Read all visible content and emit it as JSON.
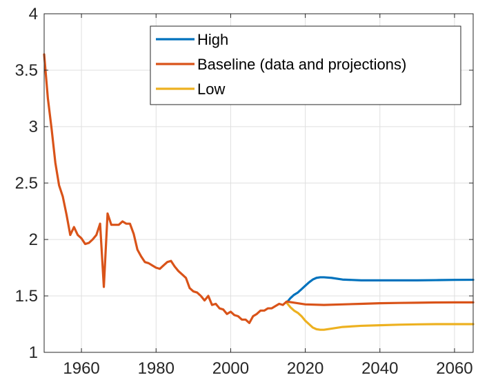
{
  "chart_data": {
    "type": "line",
    "title": "",
    "xlabel": "",
    "ylabel": "",
    "xlim": [
      1950,
      2065
    ],
    "ylim": [
      1,
      4
    ],
    "x_ticks": [
      1960,
      1980,
      2000,
      2020,
      2040,
      2060
    ],
    "y_ticks": [
      1,
      1.5,
      2,
      2.5,
      3,
      3.5,
      4
    ],
    "x_tick_labels": [
      "1960",
      "1980",
      "2000",
      "2020",
      "2040",
      "2060"
    ],
    "y_tick_labels": [
      "1",
      "1.5",
      "2",
      "2.5",
      "3",
      "3.5",
      "4"
    ],
    "grid": true,
    "legend_position": "top-right",
    "series": [
      {
        "name": "High",
        "color": "#0072BD",
        "points": [
          [
            2015,
            1.44
          ],
          [
            2016,
            1.48
          ],
          [
            2017,
            1.51
          ],
          [
            2018,
            1.53
          ],
          [
            2019,
            1.56
          ],
          [
            2020,
            1.59
          ],
          [
            2021,
            1.62
          ],
          [
            2022,
            1.645
          ],
          [
            2023,
            1.66
          ],
          [
            2024,
            1.665
          ],
          [
            2025,
            1.665
          ],
          [
            2027,
            1.66
          ],
          [
            2030,
            1.645
          ],
          [
            2035,
            1.638
          ],
          [
            2040,
            1.638
          ],
          [
            2045,
            1.638
          ],
          [
            2050,
            1.638
          ],
          [
            2055,
            1.64
          ],
          [
            2060,
            1.642
          ],
          [
            2065,
            1.643
          ]
        ]
      },
      {
        "name": "Baseline (data and projections)",
        "color": "#D95319",
        "points": [
          [
            1950,
            3.64
          ],
          [
            1951,
            3.25
          ],
          [
            1952,
            2.98
          ],
          [
            1953,
            2.68
          ],
          [
            1954,
            2.48
          ],
          [
            1955,
            2.38
          ],
          [
            1956,
            2.22
          ],
          [
            1957,
            2.04
          ],
          [
            1958,
            2.11
          ],
          [
            1959,
            2.04
          ],
          [
            1960,
            2.01
          ],
          [
            1961,
            1.96
          ],
          [
            1962,
            1.97
          ],
          [
            1963,
            2.0
          ],
          [
            1964,
            2.04
          ],
          [
            1965,
            2.14
          ],
          [
            1966,
            1.58
          ],
          [
            1967,
            2.23
          ],
          [
            1968,
            2.13
          ],
          [
            1969,
            2.13
          ],
          [
            1970,
            2.13
          ],
          [
            1971,
            2.16
          ],
          [
            1972,
            2.14
          ],
          [
            1973,
            2.14
          ],
          [
            1974,
            2.05
          ],
          [
            1975,
            1.91
          ],
          [
            1976,
            1.85
          ],
          [
            1977,
            1.8
          ],
          [
            1978,
            1.79
          ],
          [
            1979,
            1.77
          ],
          [
            1980,
            1.75
          ],
          [
            1981,
            1.74
          ],
          [
            1982,
            1.77
          ],
          [
            1983,
            1.8
          ],
          [
            1984,
            1.81
          ],
          [
            1985,
            1.76
          ],
          [
            1986,
            1.72
          ],
          [
            1987,
            1.69
          ],
          [
            1988,
            1.66
          ],
          [
            1989,
            1.57
          ],
          [
            1990,
            1.54
          ],
          [
            1991,
            1.53
          ],
          [
            1992,
            1.5
          ],
          [
            1993,
            1.46
          ],
          [
            1994,
            1.5
          ],
          [
            1995,
            1.42
          ],
          [
            1996,
            1.43
          ],
          [
            1997,
            1.39
          ],
          [
            1998,
            1.38
          ],
          [
            1999,
            1.34
          ],
          [
            2000,
            1.36
          ],
          [
            2001,
            1.33
          ],
          [
            2002,
            1.32
          ],
          [
            2003,
            1.29
          ],
          [
            2004,
            1.29
          ],
          [
            2005,
            1.26
          ],
          [
            2006,
            1.32
          ],
          [
            2007,
            1.34
          ],
          [
            2008,
            1.37
          ],
          [
            2009,
            1.37
          ],
          [
            2010,
            1.39
          ],
          [
            2011,
            1.39
          ],
          [
            2012,
            1.41
          ],
          [
            2013,
            1.43
          ],
          [
            2014,
            1.42
          ],
          [
            2015,
            1.45
          ],
          [
            2017,
            1.44
          ],
          [
            2020,
            1.425
          ],
          [
            2025,
            1.42
          ],
          [
            2030,
            1.425
          ],
          [
            2035,
            1.43
          ],
          [
            2040,
            1.435
          ],
          [
            2045,
            1.438
          ],
          [
            2050,
            1.44
          ],
          [
            2055,
            1.442
          ],
          [
            2060,
            1.443
          ],
          [
            2065,
            1.443
          ]
        ]
      },
      {
        "name": "Low",
        "color": "#EDB120",
        "points": [
          [
            2015,
            1.44
          ],
          [
            2016,
            1.4
          ],
          [
            2017,
            1.37
          ],
          [
            2018,
            1.35
          ],
          [
            2019,
            1.32
          ],
          [
            2020,
            1.28
          ],
          [
            2021,
            1.25
          ],
          [
            2022,
            1.22
          ],
          [
            2023,
            1.205
          ],
          [
            2024,
            1.2
          ],
          [
            2025,
            1.2
          ],
          [
            2027,
            1.21
          ],
          [
            2030,
            1.225
          ],
          [
            2035,
            1.235
          ],
          [
            2040,
            1.24
          ],
          [
            2045,
            1.245
          ],
          [
            2050,
            1.248
          ],
          [
            2055,
            1.25
          ],
          [
            2060,
            1.25
          ],
          [
            2065,
            1.25
          ]
        ]
      }
    ]
  }
}
